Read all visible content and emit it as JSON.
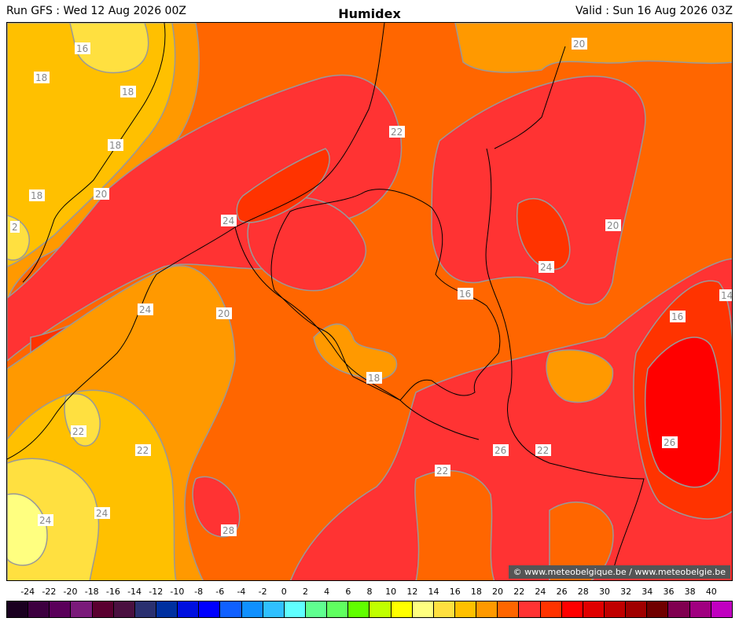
{
  "header": {
    "run": "Run GFS : Wed 12 Aug 2026 00Z",
    "title": "Humidex",
    "valid": "Valid : Sun 16 Aug 2026 03Z"
  },
  "credit": "© www.meteobelgique.be / www.meteobelgie.be",
  "map_labels": [
    "16",
    "18",
    "18",
    "18",
    "20",
    "18",
    "2",
    "24",
    "20",
    "24",
    "22",
    "20",
    "24",
    "20",
    "22",
    "20",
    "24",
    "22",
    "16",
    "18",
    "16",
    "14",
    "22",
    "22",
    "24",
    "24",
    "28",
    "22",
    "26",
    "22",
    "26"
  ],
  "colorbar": {
    "ticks": [
      "-24",
      "-22",
      "-20",
      "-18",
      "-16",
      "-14",
      "-12",
      "-10",
      "-8",
      "-6",
      "-4",
      "-2",
      "0",
      "2",
      "4",
      "6",
      "8",
      "10",
      "12",
      "14",
      "16",
      "18",
      "20",
      "22",
      "24",
      "26",
      "28",
      "30",
      "32",
      "34",
      "36",
      "38",
      "40"
    ],
    "colors": [
      "#1a0020",
      "#3d0040",
      "#5a005a",
      "#7a1a7a",
      "#5a0030",
      "#4a1040",
      "#2a3070",
      "#0030a0",
      "#0010e0",
      "#0000ff",
      "#1060ff",
      "#1090ff",
      "#30c0ff",
      "#60ffff",
      "#60ff90",
      "#60ff60",
      "#60ff00",
      "#c0ff00",
      "#ffff00",
      "#ffff80",
      "#ffe040",
      "#ffc000",
      "#ff9900",
      "#ff6600",
      "#ff3333",
      "#ff3300",
      "#ff0000",
      "#e00000",
      "#c00000",
      "#a00000",
      "#700000",
      "#800050",
      "#a00080",
      "#c000c0"
    ]
  },
  "colors": {
    "humidex_14": "#ffff80",
    "humidex_16": "#ffe040",
    "humidex_18": "#ffc000",
    "humidex_20": "#ff9900",
    "humidex_22": "#ff6600",
    "humidex_24": "#ff3333",
    "humidex_26": "#ff3300",
    "humidex_28": "#ff0000"
  }
}
